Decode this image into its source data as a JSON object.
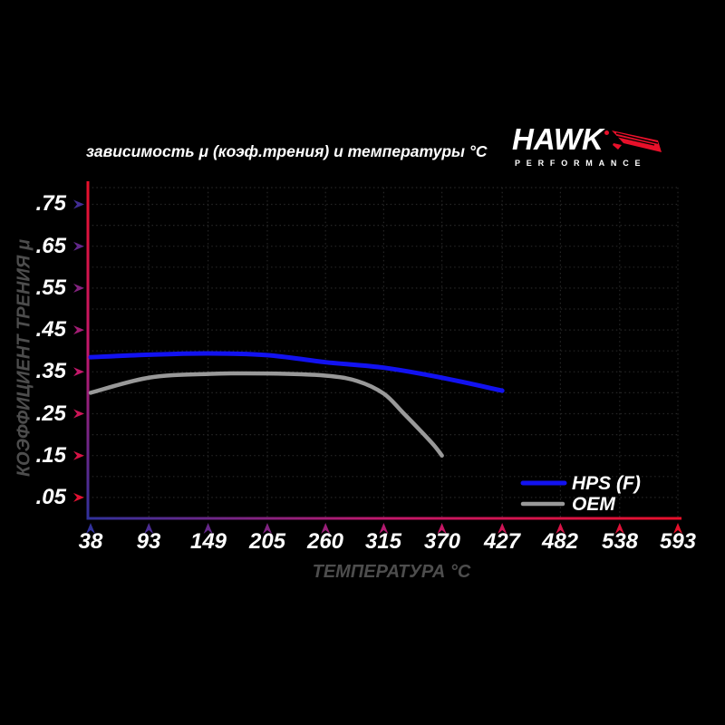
{
  "page": {
    "background": "#000000"
  },
  "header": {
    "title": "зависимость μ (коэф.трения) и температуры °C",
    "logo": {
      "brand": "HAWK",
      "sub": "PERFORMANCE",
      "brand_color": "#ffffff",
      "wing_color": "#e8102a"
    }
  },
  "chart_data": {
    "type": "line",
    "title": "зависимость μ (коэф.трения) и температуры °C",
    "xlabel": "ТЕМПЕРАТУРА °C",
    "ylabel": "КОЭФФИЦИЕНТ ТРЕНИЯ μ",
    "x_ticks": [
      "38",
      "93",
      "149",
      "205",
      "260",
      "315",
      "370",
      "427",
      "482",
      "538",
      "593"
    ],
    "x_tick_values": [
      38,
      93,
      149,
      205,
      260,
      315,
      370,
      427,
      482,
      538,
      593
    ],
    "y_ticks": [
      ".75",
      ".65",
      ".55",
      ".45",
      ".35",
      ".25",
      ".15",
      ".05"
    ],
    "y_tick_values": [
      0.75,
      0.65,
      0.55,
      0.45,
      0.35,
      0.25,
      0.15,
      0.05
    ],
    "xlim": [
      38,
      593
    ],
    "ylim": [
      0,
      0.79
    ],
    "grid": "dotted",
    "grid_color": "#262626",
    "legend_position": "lower right",
    "axis_gradient": {
      "blue_end": "#30319b",
      "mid": "#c2186c",
      "red_end": "#e8102a"
    },
    "series": [
      {
        "name": "HPS (F)",
        "color": "#1212f0",
        "points": [
          [
            38,
            0.385
          ],
          [
            93,
            0.391
          ],
          [
            149,
            0.394
          ],
          [
            205,
            0.39
          ],
          [
            260,
            0.373
          ],
          [
            315,
            0.36
          ],
          [
            370,
            0.336
          ],
          [
            427,
            0.305
          ]
        ]
      },
      {
        "name": "OEM",
        "color": "#999999",
        "points": [
          [
            38,
            0.3
          ],
          [
            93,
            0.336
          ],
          [
            149,
            0.345
          ],
          [
            205,
            0.346
          ],
          [
            260,
            0.341
          ],
          [
            290,
            0.328
          ],
          [
            315,
            0.298
          ],
          [
            333,
            0.253
          ],
          [
            351,
            0.206
          ],
          [
            363,
            0.173
          ],
          [
            370,
            0.15
          ]
        ]
      }
    ]
  }
}
